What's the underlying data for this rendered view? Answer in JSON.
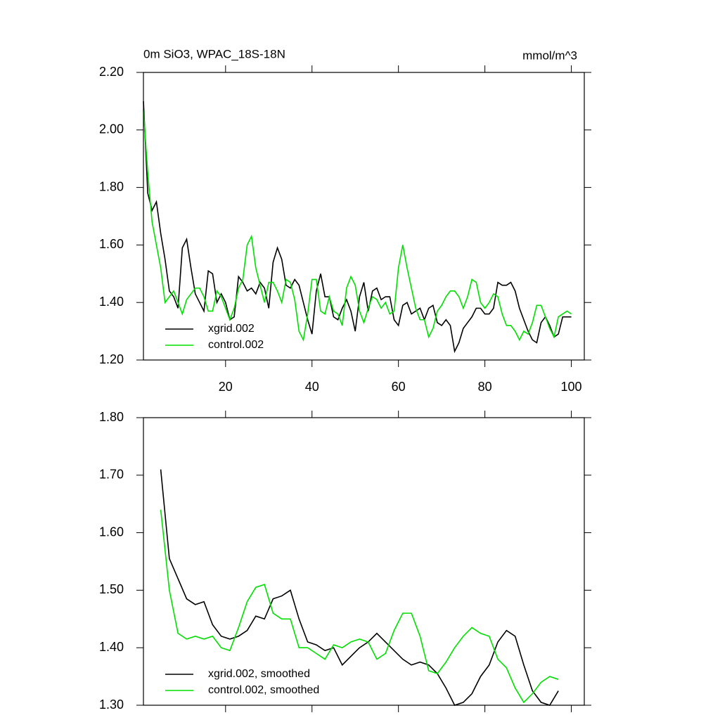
{
  "chart_data": [
    {
      "type": "line",
      "title": "0m SiO3, WPAC_18S-18N",
      "units": "mmol/m^3",
      "x": [
        1,
        2,
        3,
        4,
        5,
        6,
        7,
        8,
        9,
        10,
        11,
        12,
        13,
        14,
        15,
        16,
        17,
        18,
        19,
        20,
        21,
        22,
        23,
        24,
        25,
        26,
        27,
        28,
        29,
        30,
        31,
        32,
        33,
        34,
        35,
        36,
        37,
        38,
        39,
        40,
        41,
        42,
        43,
        44,
        45,
        46,
        47,
        48,
        49,
        50,
        51,
        52,
        53,
        54,
        55,
        56,
        57,
        58,
        59,
        60,
        61,
        62,
        63,
        64,
        65,
        66,
        67,
        68,
        69,
        70,
        71,
        72,
        73,
        74,
        75,
        76,
        77,
        78,
        79,
        80,
        81,
        82,
        83,
        84,
        85,
        86,
        87,
        88,
        89,
        90,
        91,
        92,
        93,
        94,
        95,
        96,
        97,
        98,
        99,
        100
      ],
      "series": [
        {
          "name": "xgrid.002",
          "color": "#000000",
          "values": [
            2.1,
            1.78,
            1.72,
            1.75,
            1.64,
            1.55,
            1.44,
            1.42,
            1.38,
            1.59,
            1.62,
            1.52,
            1.43,
            1.4,
            1.37,
            1.51,
            1.5,
            1.4,
            1.43,
            1.4,
            1.34,
            1.35,
            1.49,
            1.47,
            1.44,
            1.45,
            1.43,
            1.47,
            1.45,
            1.38,
            1.54,
            1.59,
            1.55,
            1.46,
            1.45,
            1.48,
            1.46,
            1.4,
            1.34,
            1.29,
            1.44,
            1.5,
            1.42,
            1.42,
            1.35,
            1.34,
            1.38,
            1.41,
            1.37,
            1.3,
            1.42,
            1.47,
            1.37,
            1.44,
            1.45,
            1.41,
            1.42,
            1.42,
            1.34,
            1.32,
            1.39,
            1.4,
            1.36,
            1.37,
            1.38,
            1.34,
            1.38,
            1.39,
            1.33,
            1.32,
            1.34,
            1.32,
            1.23,
            1.26,
            1.31,
            1.33,
            1.35,
            1.38,
            1.38,
            1.36,
            1.36,
            1.38,
            1.47,
            1.46,
            1.46,
            1.47,
            1.44,
            1.38,
            1.34,
            1.3,
            1.27,
            1.26,
            1.33,
            1.35,
            1.32,
            1.28,
            1.29,
            1.35,
            1.35,
            1.35
          ]
        },
        {
          "name": "control.002",
          "color": "#00e000",
          "values": [
            2.07,
            1.85,
            1.68,
            1.6,
            1.52,
            1.4,
            1.42,
            1.44,
            1.4,
            1.36,
            1.41,
            1.43,
            1.45,
            1.45,
            1.42,
            1.37,
            1.37,
            1.44,
            1.42,
            1.38,
            1.34,
            1.38,
            1.45,
            1.48,
            1.6,
            1.63,
            1.52,
            1.46,
            1.4,
            1.47,
            1.47,
            1.44,
            1.4,
            1.48,
            1.47,
            1.41,
            1.3,
            1.27,
            1.36,
            1.48,
            1.48,
            1.37,
            1.36,
            1.42,
            1.37,
            1.36,
            1.32,
            1.45,
            1.49,
            1.46,
            1.37,
            1.33,
            1.38,
            1.42,
            1.41,
            1.38,
            1.4,
            1.36,
            1.37,
            1.52,
            1.6,
            1.52,
            1.45,
            1.38,
            1.34,
            1.34,
            1.28,
            1.31,
            1.37,
            1.39,
            1.42,
            1.44,
            1.44,
            1.42,
            1.38,
            1.42,
            1.48,
            1.47,
            1.4,
            1.38,
            1.4,
            1.43,
            1.42,
            1.36,
            1.32,
            1.32,
            1.3,
            1.27,
            1.3,
            1.29,
            1.33,
            1.39,
            1.39,
            1.35,
            1.31,
            1.28,
            1.35,
            1.36,
            1.37,
            1.36
          ]
        }
      ],
      "xlim": [
        1,
        103
      ],
      "xticks": [
        20,
        40,
        60,
        80,
        100
      ],
      "xtick_labels": true,
      "ylim": [
        1.2,
        2.2
      ],
      "yticks": [
        {
          "value": 1.2,
          "label": "1.20"
        },
        {
          "value": 1.4,
          "label": "1.40"
        },
        {
          "value": 1.6,
          "label": "1.60"
        },
        {
          "value": 1.8,
          "label": "1.80"
        },
        {
          "value": 2.0,
          "label": "2.00"
        },
        {
          "value": 2.2,
          "label": "2.20"
        }
      ],
      "legend": "lower left"
    },
    {
      "type": "line",
      "x": [
        5,
        7,
        9,
        11,
        13,
        15,
        17,
        19,
        21,
        23,
        25,
        27,
        29,
        31,
        33,
        35,
        37,
        39,
        41,
        43,
        45,
        47,
        49,
        51,
        53,
        55,
        57,
        59,
        61,
        63,
        65,
        67,
        69,
        71,
        73,
        75,
        77,
        79,
        81,
        83,
        85,
        87,
        89,
        91,
        93,
        95,
        97
      ],
      "series": [
        {
          "name": "xgrid.002, smoothed",
          "color": "#000000",
          "values": [
            1.71,
            1.555,
            1.52,
            1.485,
            1.475,
            1.48,
            1.44,
            1.42,
            1.415,
            1.42,
            1.43,
            1.455,
            1.45,
            1.485,
            1.49,
            1.5,
            1.45,
            1.41,
            1.405,
            1.395,
            1.4,
            1.37,
            1.385,
            1.4,
            1.41,
            1.425,
            1.41,
            1.395,
            1.38,
            1.37,
            1.375,
            1.37,
            1.355,
            1.33,
            1.3,
            1.305,
            1.32,
            1.35,
            1.37,
            1.41,
            1.43,
            1.42,
            1.37,
            1.325,
            1.305,
            1.3,
            1.325
          ]
        },
        {
          "name": "control.002, smoothed",
          "color": "#00e000",
          "values": [
            1.64,
            1.5,
            1.425,
            1.415,
            1.42,
            1.415,
            1.42,
            1.4,
            1.395,
            1.435,
            1.48,
            1.505,
            1.51,
            1.46,
            1.45,
            1.45,
            1.4,
            1.4,
            1.39,
            1.38,
            1.405,
            1.4,
            1.41,
            1.415,
            1.41,
            1.38,
            1.39,
            1.43,
            1.46,
            1.46,
            1.42,
            1.36,
            1.355,
            1.375,
            1.4,
            1.42,
            1.435,
            1.425,
            1.42,
            1.38,
            1.365,
            1.33,
            1.305,
            1.32,
            1.34,
            1.35,
            1.345
          ]
        }
      ],
      "xlim": [
        1,
        103
      ],
      "xticks": [
        20,
        40,
        60,
        80,
        100
      ],
      "xtick_labels": false,
      "ylim": [
        1.3,
        1.8
      ],
      "yticks": [
        {
          "value": 1.3,
          "label": "1.30"
        },
        {
          "value": 1.4,
          "label": "1.40"
        },
        {
          "value": 1.5,
          "label": "1.50"
        },
        {
          "value": 1.6,
          "label": "1.60"
        },
        {
          "value": 1.7,
          "label": "1.70"
        },
        {
          "value": 1.8,
          "label": "1.80"
        }
      ],
      "legend": "lower left"
    }
  ]
}
